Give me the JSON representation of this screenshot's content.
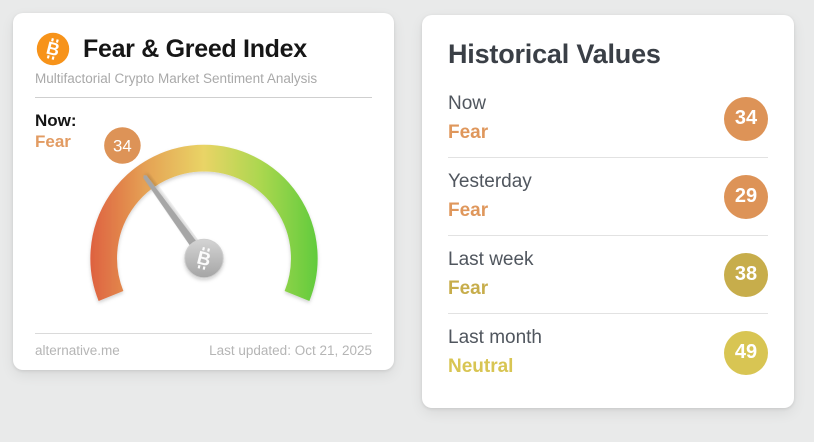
{
  "index_card": {
    "title": "Fear & Greed Index",
    "subtitle": "Multifactorial Crypto Market Sentiment Analysis",
    "now_label": "Now:",
    "now_status": "Fear",
    "now_status_color": "#e29b62",
    "footer_site": "alternative.me",
    "footer_updated": "Last updated: Oct 21, 2025",
    "bitcoin_orange": "#f7931a"
  },
  "gauge": {
    "value": 34,
    "min": 0,
    "max": 100,
    "start_angle_deg": 158,
    "span_deg": 224,
    "badge_color": "#dd9357",
    "badge_text_color": "#ffffff",
    "gradient": [
      "#de6140",
      "#e5a355",
      "#e9d466",
      "#abd74f",
      "#61cb3d"
    ],
    "needle_color": "#a6a6a6",
    "hub_icon": "bitcoin"
  },
  "historical_card": {
    "title": "Historical Values",
    "rows": [
      {
        "label": "Now",
        "status": "Fear",
        "value": "34",
        "badge_color": "#dd9357",
        "status_color": "#df975c"
      },
      {
        "label": "Yesterday",
        "status": "Fear",
        "value": "29",
        "badge_color": "#dd9357",
        "status_color": "#df975c"
      },
      {
        "label": "Last week",
        "status": "Fear",
        "value": "38",
        "badge_color": "#c7ad4b",
        "status_color": "#c7ad4b"
      },
      {
        "label": "Last month",
        "status": "Neutral",
        "value": "49",
        "badge_color": "#d8c553",
        "status_color": "#d8c553"
      }
    ]
  }
}
